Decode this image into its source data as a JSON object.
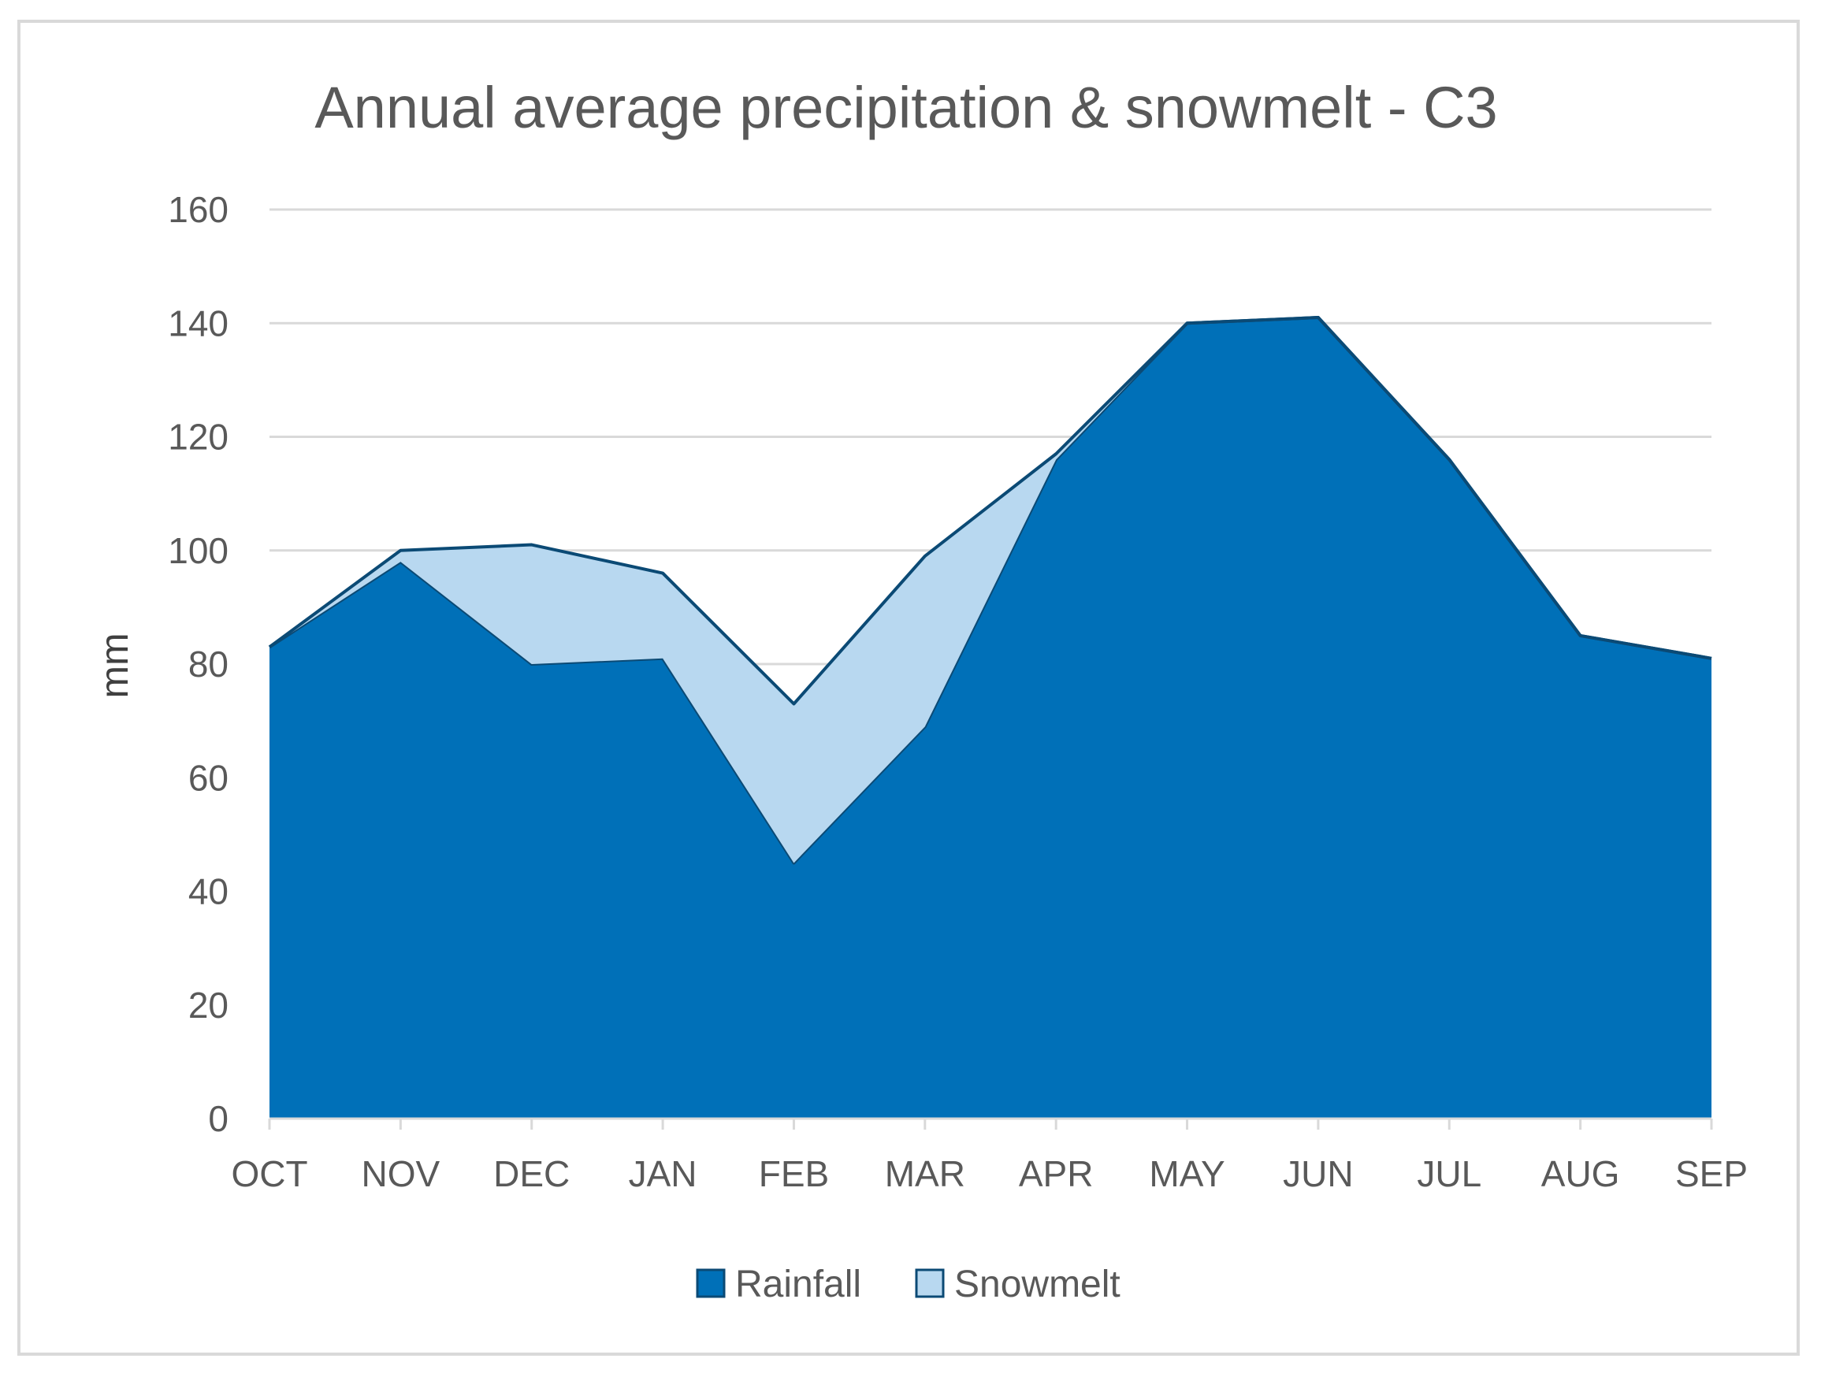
{
  "chart_data": {
    "type": "area",
    "title": "Annual average precipitation & snowmelt - C3",
    "xlabel": "",
    "ylabel": "mm",
    "ylim": [
      0,
      160
    ],
    "yticks": [
      "0",
      "20",
      "40",
      "60",
      "80",
      "100",
      "120",
      "140",
      "160"
    ],
    "grid": true,
    "stacked": true,
    "legend_position": "bottom",
    "categories": [
      "OCT",
      "NOV",
      "DEC",
      "JAN",
      "FEB",
      "MAR",
      "APR",
      "MAY",
      "JUN",
      "JUL",
      "AUG",
      "SEP"
    ],
    "series": [
      {
        "name": "Rainfall",
        "color": "#0070b8",
        "values": [
          83,
          98,
          80,
          81,
          45,
          69,
          116,
          140,
          141,
          116,
          85,
          81
        ]
      },
      {
        "name": "Snowmelt",
        "color": "#b8d8f0",
        "values": [
          0,
          2,
          21,
          15,
          28,
          30,
          1,
          0,
          0,
          0,
          0,
          0
        ]
      }
    ],
    "outline_color": "#0b4a75",
    "grid_color": "#d9d9d9"
  }
}
